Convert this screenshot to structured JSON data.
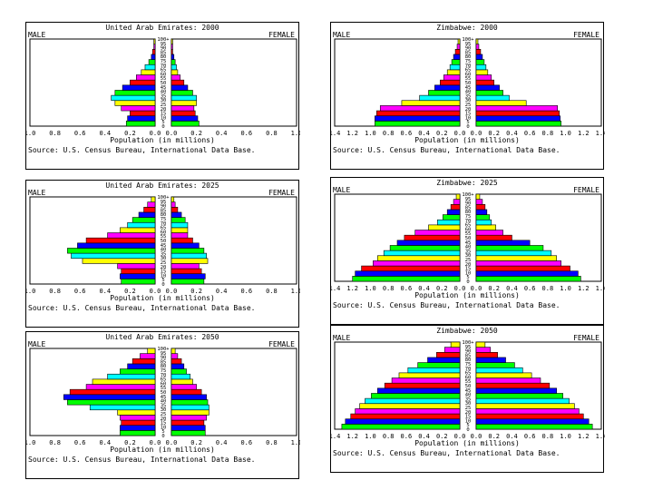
{
  "colors": {
    "palette": [
      "#00ff00",
      "#0000ff",
      "#ff0000",
      "#ff00ff",
      "#ffff00",
      "#00ffff"
    ],
    "frame": "#000000",
    "background": "#ffffff"
  },
  "panels": [
    {
      "title": "United Arab Emirates: 2000",
      "male_label": "MALE",
      "female_label": "FEMALE",
      "xlabel": "Population (in millions)",
      "source": "Source: U.S. Census Bureau, International Data Base."
    },
    {
      "title": "Zimbabwe: 2000",
      "male_label": "MALE",
      "female_label": "FEMALE",
      "xlabel": "Population (in millions)",
      "source": "Source: U.S. Census Bureau, International Data Base."
    },
    {
      "title": "United Arab Emirates: 2025",
      "male_label": "MALE",
      "female_label": "FEMALE",
      "xlabel": "Population (in millions)",
      "source": "Source: U.S. Census Bureau, International Data Base."
    },
    {
      "title": "Zimbabwe: 2025",
      "male_label": "MALE",
      "female_label": "FEMALE",
      "xlabel": "Population (in millions)",
      "source": "Source: U.S. Census Bureau, International Data Base."
    },
    {
      "title": "United Arab Emirates: 2050",
      "male_label": "MALE",
      "female_label": "FEMALE",
      "xlabel": "Population (in millions)",
      "source": "Source: U.S. Census Bureau, International Data Base."
    },
    {
      "title": "Zimbabwe: 2050",
      "male_label": "MALE",
      "female_label": "FEMALE",
      "xlabel": "Population (in millions)",
      "source": "Source: U.S. Census Bureau, International Data Base."
    }
  ],
  "chart_data": [
    {
      "type": "bar",
      "title": "United Arab Emirates: 2000",
      "xlabel": "Population (in millions)",
      "xlim": [
        0,
        1.0
      ],
      "xticks": [
        "1.0",
        "0.8",
        "0.6",
        "0.4",
        "0.2",
        "0.0",
        "0.0",
        "0.2",
        "0.4",
        "0.6",
        "0.8",
        "1.0"
      ],
      "age_groups": [
        "0-4",
        "5-9",
        "10-14",
        "15-19",
        "20-24",
        "25-29",
        "30-34",
        "35-39",
        "40-44",
        "45-49",
        "50-54",
        "55-59",
        "60-64",
        "65-69",
        "70-74",
        "75-79",
        "80+"
      ],
      "age_tick_labels": [
        "0",
        "5",
        "10",
        "15",
        "20",
        "25",
        "30",
        "35",
        "40",
        "45",
        "50",
        "55",
        "60",
        "65",
        "70",
        "75",
        "80",
        "85",
        "90",
        "95",
        "100+"
      ],
      "series": [
        {
          "name": "MALE",
          "values": [
            0.23,
            0.22,
            0.2,
            0.27,
            0.32,
            0.35,
            0.32,
            0.26,
            0.2,
            0.15,
            0.11,
            0.08,
            0.05,
            0.03,
            0.02,
            0.01,
            0.01
          ]
        },
        {
          "name": "FEMALE",
          "values": [
            0.22,
            0.21,
            0.19,
            0.18,
            0.2,
            0.2,
            0.17,
            0.13,
            0.1,
            0.07,
            0.05,
            0.04,
            0.03,
            0.02,
            0.01,
            0.01,
            0.01
          ]
        }
      ]
    },
    {
      "type": "bar",
      "title": "Zimbabwe: 2000",
      "xlabel": "Population (in millions)",
      "xlim": [
        0,
        1.4
      ],
      "xticks": [
        "1.4",
        "1.2",
        "1.0",
        "0.8",
        "0.6",
        "0.4",
        "0.2",
        "0.0",
        "0.0",
        "0.2",
        "0.4",
        "0.6",
        "0.8",
        "1.0",
        "1.2",
        "1.4"
      ],
      "age_groups": [
        "0-4",
        "5-9",
        "10-14",
        "15-19",
        "20-24",
        "25-29",
        "30-34",
        "35-39",
        "40-44",
        "45-49",
        "50-54",
        "55-59",
        "60-64",
        "65-69",
        "70-74",
        "75-79",
        "80+"
      ],
      "age_tick_labels": [
        "0",
        "5",
        "10",
        "15",
        "20",
        "25",
        "30",
        "35",
        "40",
        "45",
        "50",
        "55",
        "60",
        "65",
        "70",
        "75",
        "80",
        "85",
        "90",
        "95",
        "100+"
      ],
      "series": [
        {
          "name": "MALE",
          "values": [
            0.95,
            0.95,
            0.93,
            0.89,
            0.65,
            0.45,
            0.35,
            0.28,
            0.22,
            0.18,
            0.14,
            0.11,
            0.09,
            0.07,
            0.05,
            0.03,
            0.02
          ]
        },
        {
          "name": "FEMALE",
          "values": [
            0.95,
            0.94,
            0.93,
            0.91,
            0.56,
            0.37,
            0.3,
            0.26,
            0.2,
            0.17,
            0.13,
            0.11,
            0.09,
            0.07,
            0.05,
            0.03,
            0.02
          ]
        }
      ]
    },
    {
      "type": "bar",
      "title": "United Arab Emirates: 2025",
      "xlabel": "Population (in millions)",
      "xlim": [
        0,
        1.0
      ],
      "xticks": [
        "1.0",
        "0.8",
        "0.6",
        "0.4",
        "0.2",
        "0.0",
        "0.0",
        "0.2",
        "0.4",
        "0.6",
        "0.8",
        "1.0"
      ],
      "age_groups": [
        "0-4",
        "5-9",
        "10-14",
        "15-19",
        "20-24",
        "25-29",
        "30-34",
        "35-39",
        "40-44",
        "45-49",
        "50-54",
        "55-59",
        "60-64",
        "65-69",
        "70-74",
        "75-79",
        "80+"
      ],
      "age_tick_labels": [
        "0",
        "5",
        "10",
        "15",
        "20",
        "25",
        "30",
        "35",
        "40",
        "45",
        "50",
        "55",
        "60",
        "65",
        "70",
        "75",
        "80",
        "85",
        "90",
        "95",
        "100+"
      ],
      "series": [
        {
          "name": "MALE",
          "values": [
            0.27,
            0.28,
            0.27,
            0.3,
            0.58,
            0.67,
            0.7,
            0.62,
            0.55,
            0.38,
            0.28,
            0.22,
            0.18,
            0.13,
            0.09,
            0.06,
            0.03
          ]
        },
        {
          "name": "FEMALE",
          "values": [
            0.26,
            0.27,
            0.24,
            0.22,
            0.29,
            0.28,
            0.26,
            0.22,
            0.17,
            0.13,
            0.13,
            0.13,
            0.11,
            0.08,
            0.05,
            0.03,
            0.02
          ]
        }
      ]
    },
    {
      "type": "bar",
      "title": "Zimbabwe: 2025",
      "xlabel": "Population (in millions)",
      "xlim": [
        0,
        1.4
      ],
      "xticks": [
        "1.4",
        "1.2",
        "1.0",
        "0.8",
        "0.6",
        "0.4",
        "0.2",
        "0.0",
        "0.0",
        "0.2",
        "0.4",
        "0.6",
        "0.8",
        "1.0",
        "1.2",
        "1.4"
      ],
      "age_groups": [
        "0-4",
        "5-9",
        "10-14",
        "15-19",
        "20-24",
        "25-29",
        "30-34",
        "35-39",
        "40-44",
        "45-49",
        "50-54",
        "55-59",
        "60-64",
        "65-69",
        "70-74",
        "75-79",
        "80+"
      ],
      "age_tick_labels": [
        "0",
        "5",
        "10",
        "15",
        "20",
        "25",
        "30",
        "35",
        "40",
        "45",
        "50",
        "55",
        "60",
        "65",
        "70",
        "75",
        "80",
        "85",
        "90",
        "95",
        "100+"
      ],
      "series": [
        {
          "name": "MALE",
          "values": [
            1.2,
            1.17,
            1.1,
            0.97,
            0.92,
            0.85,
            0.78,
            0.7,
            0.62,
            0.5,
            0.35,
            0.25,
            0.19,
            0.14,
            0.1,
            0.07,
            0.04
          ]
        },
        {
          "name": "FEMALE",
          "values": [
            1.17,
            1.14,
            1.05,
            0.95,
            0.9,
            0.84,
            0.75,
            0.6,
            0.4,
            0.3,
            0.22,
            0.17,
            0.15,
            0.12,
            0.1,
            0.07,
            0.04
          ]
        }
      ]
    },
    {
      "type": "bar",
      "title": "United Arab Emirates: 2050",
      "xlabel": "Population (in millions)",
      "xlim": [
        0,
        1.0
      ],
      "xticks": [
        "1.0",
        "0.8",
        "0.6",
        "0.4",
        "0.2",
        "0.0",
        "0.0",
        "0.2",
        "0.4",
        "0.6",
        "0.8",
        "1.0"
      ],
      "age_groups": [
        "0-4",
        "5-9",
        "10-14",
        "15-19",
        "20-24",
        "25-29",
        "30-34",
        "35-39",
        "40-44",
        "45-49",
        "50-54",
        "55-59",
        "60-64",
        "65-69",
        "70-74",
        "75-79",
        "80+"
      ],
      "age_tick_labels": [
        "0",
        "5",
        "10",
        "15",
        "20",
        "25",
        "30",
        "35",
        "40",
        "45",
        "50",
        "55",
        "60",
        "65",
        "70",
        "75",
        "80",
        "85",
        "90",
        "95",
        "100+"
      ],
      "series": [
        {
          "name": "MALE",
          "values": [
            0.28,
            0.28,
            0.27,
            0.28,
            0.3,
            0.52,
            0.7,
            0.73,
            0.68,
            0.55,
            0.5,
            0.38,
            0.28,
            0.22,
            0.18,
            0.12,
            0.06
          ]
        },
        {
          "name": "FEMALE",
          "values": [
            0.27,
            0.27,
            0.26,
            0.28,
            0.3,
            0.3,
            0.29,
            0.28,
            0.24,
            0.2,
            0.17,
            0.15,
            0.12,
            0.1,
            0.08,
            0.05,
            0.03
          ]
        }
      ]
    },
    {
      "type": "bar",
      "title": "Zimbabwe: 2050",
      "xlabel": "Population (in millions)",
      "xlim": [
        0,
        1.4
      ],
      "xticks": [
        "1.4",
        "1.2",
        "1.0",
        "0.8",
        "0.6",
        "0.4",
        "0.2",
        "0.0",
        "0.0",
        "0.2",
        "0.4",
        "0.6",
        "0.8",
        "1.0",
        "1.2",
        "1.4"
      ],
      "age_groups": [
        "0-4",
        "5-9",
        "10-14",
        "15-19",
        "20-24",
        "25-29",
        "30-34",
        "35-39",
        "40-44",
        "45-49",
        "50-54",
        "55-59",
        "60-64",
        "65-69",
        "70-74",
        "75-79",
        "80+"
      ],
      "age_tick_labels": [
        "0",
        "5",
        "10",
        "15",
        "20",
        "25",
        "30",
        "35",
        "40",
        "45",
        "50",
        "55",
        "60",
        "65",
        "70",
        "75",
        "80",
        "85",
        "90",
        "95",
        "100+"
      ],
      "series": [
        {
          "name": "MALE",
          "values": [
            1.32,
            1.28,
            1.22,
            1.17,
            1.12,
            1.06,
            0.99,
            0.92,
            0.84,
            0.76,
            0.68,
            0.58,
            0.47,
            0.36,
            0.26,
            0.17,
            0.1
          ]
        },
        {
          "name": "FEMALE",
          "values": [
            1.3,
            1.26,
            1.2,
            1.15,
            1.1,
            1.04,
            0.97,
            0.9,
            0.82,
            0.72,
            0.62,
            0.52,
            0.43,
            0.33,
            0.24,
            0.16,
            0.1
          ]
        }
      ]
    }
  ]
}
